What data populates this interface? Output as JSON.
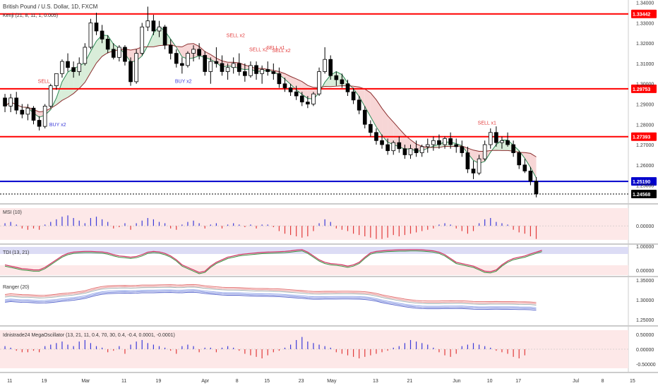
{
  "title": "British Pound / U.S. Dollar, 1D, FXCM",
  "main_subtitle": "Kenji (21, 8, 11, 1, 0.005)",
  "colors": {
    "up": "#ffffff",
    "down": "#000000",
    "red_line": "#ff0000",
    "blue_line": "#0000cc",
    "sell": "#e23b3b",
    "buy": "#3b3bd9"
  },
  "chart_data": [
    {
      "type": "candlestick",
      "title": "British Pound / U.S. Dollar, 1D, FXCM",
      "subtitle": "Kenji (21, 8, 11, 1, 0.005)",
      "ylim": [
        1.2415,
        1.3385
      ],
      "y_ticks": [
        "1.34000",
        "1.33000",
        "1.32000",
        "1.31000",
        "1.30000",
        "1.29000",
        "1.28000",
        "1.27000",
        "1.26000",
        "1.25000"
      ],
      "x_ticks": [
        {
          "label": "11",
          "index": 1
        },
        {
          "label": "19",
          "index": 7
        },
        {
          "label": "Mar",
          "index": 14
        },
        {
          "label": "11",
          "index": 21
        },
        {
          "label": "19",
          "index": 27
        },
        {
          "label": "Apr",
          "index": 35
        },
        {
          "label": "8",
          "index": 41
        },
        {
          "label": "15",
          "index": 46
        },
        {
          "label": "23",
          "index": 52
        },
        {
          "label": "May",
          "index": 57
        },
        {
          "label": "13",
          "index": 65
        },
        {
          "label": "21",
          "index": 71
        },
        {
          "label": "Jun",
          "index": 79
        },
        {
          "label": "10",
          "index": 85
        },
        {
          "label": "17",
          "index": 90
        },
        {
          "label": "Jul",
          "index": 100
        },
        {
          "label": "8",
          "index": 105
        },
        {
          "label": "15",
          "index": 110
        }
      ],
      "levels": [
        {
          "value": "1.33442",
          "color": "#ff0000"
        },
        {
          "value": "1.29753",
          "color": "#ff0000"
        },
        {
          "value": "1.27393",
          "color": "#ff0000"
        },
        {
          "value": "1.25190",
          "color": "#0000cc"
        },
        {
          "value": "1.24568",
          "color": "#000000"
        }
      ],
      "signals": [
        {
          "text": "SELL",
          "type": "sell",
          "index": 7,
          "value": 1.3005
        },
        {
          "text": "BUY x2",
          "type": "buy",
          "index": 9,
          "value": 1.279
        },
        {
          "text": "BUY x2",
          "type": "buy",
          "index": 31,
          "value": 1.3005
        },
        {
          "text": "SELL x2",
          "type": "sell",
          "index": 40,
          "value": 1.323
        },
        {
          "text": "SELL x2",
          "type": "sell",
          "index": 44,
          "value": 1.316
        },
        {
          "text": "SELL x1",
          "type": "sell",
          "index": 47,
          "value": 1.317
        },
        {
          "text": "SELL x2",
          "type": "sell",
          "index": 48,
          "value": 1.3155
        },
        {
          "text": "SELL x1",
          "type": "sell",
          "index": 84,
          "value": 1.28
        }
      ],
      "candles": [
        [
          1.293,
          1.295,
          1.286,
          1.289
        ],
        [
          1.289,
          1.295,
          1.286,
          1.293
        ],
        [
          1.293,
          1.296,
          1.285,
          1.287
        ],
        [
          1.287,
          1.29,
          1.283,
          1.285
        ],
        [
          1.285,
          1.29,
          1.282,
          1.288
        ],
        [
          1.288,
          1.289,
          1.28,
          1.282
        ],
        [
          1.282,
          1.284,
          1.277,
          1.279
        ],
        [
          1.279,
          1.29,
          1.278,
          1.289
        ],
        [
          1.289,
          1.3,
          1.288,
          1.299
        ],
        [
          1.299,
          1.305,
          1.297,
          1.305
        ],
        [
          1.305,
          1.312,
          1.303,
          1.311
        ],
        [
          1.311,
          1.315,
          1.306,
          1.308
        ],
        [
          1.308,
          1.311,
          1.303,
          1.306
        ],
        [
          1.306,
          1.313,
          1.304,
          1.31
        ],
        [
          1.31,
          1.32,
          1.309,
          1.318
        ],
        [
          1.318,
          1.332,
          1.317,
          1.33
        ],
        [
          1.33,
          1.335,
          1.324,
          1.326
        ],
        [
          1.326,
          1.329,
          1.32,
          1.322
        ],
        [
          1.322,
          1.324,
          1.315,
          1.317
        ],
        [
          1.317,
          1.32,
          1.312,
          1.313
        ],
        [
          1.313,
          1.319,
          1.311,
          1.318
        ],
        [
          1.318,
          1.319,
          1.309,
          1.311
        ],
        [
          1.311,
          1.313,
          1.299,
          1.301
        ],
        [
          1.301,
          1.317,
          1.3,
          1.315
        ],
        [
          1.315,
          1.33,
          1.314,
          1.328
        ],
        [
          1.328,
          1.338,
          1.326,
          1.331
        ],
        [
          1.331,
          1.334,
          1.324,
          1.326
        ],
        [
          1.326,
          1.331,
          1.323,
          1.328
        ],
        [
          1.328,
          1.329,
          1.317,
          1.319
        ],
        [
          1.319,
          1.322,
          1.312,
          1.315
        ],
        [
          1.315,
          1.317,
          1.308,
          1.31
        ],
        [
          1.31,
          1.313,
          1.305,
          1.309
        ],
        [
          1.309,
          1.316,
          1.308,
          1.315
        ],
        [
          1.315,
          1.319,
          1.311,
          1.317
        ],
        [
          1.317,
          1.32,
          1.312,
          1.314
        ],
        [
          1.314,
          1.316,
          1.304,
          1.306
        ],
        [
          1.306,
          1.313,
          1.3,
          1.311
        ],
        [
          1.311,
          1.318,
          1.308,
          1.31
        ],
        [
          1.31,
          1.314,
          1.304,
          1.306
        ],
        [
          1.306,
          1.31,
          1.302,
          1.308
        ],
        [
          1.308,
          1.313,
          1.305,
          1.31
        ],
        [
          1.31,
          1.315,
          1.304,
          1.306
        ],
        [
          1.306,
          1.31,
          1.301,
          1.304
        ],
        [
          1.304,
          1.311,
          1.303,
          1.309
        ],
        [
          1.309,
          1.311,
          1.302,
          1.305
        ],
        [
          1.305,
          1.309,
          1.3,
          1.307
        ],
        [
          1.307,
          1.311,
          1.304,
          1.306
        ],
        [
          1.306,
          1.31,
          1.302,
          1.305
        ],
        [
          1.305,
          1.308,
          1.298,
          1.3
        ],
        [
          1.3,
          1.303,
          1.296,
          1.298
        ],
        [
          1.298,
          1.3,
          1.294,
          1.296
        ],
        [
          1.296,
          1.299,
          1.292,
          1.294
        ],
        [
          1.294,
          1.296,
          1.289,
          1.291
        ],
        [
          1.291,
          1.294,
          1.288,
          1.29
        ],
        [
          1.29,
          1.296,
          1.289,
          1.295
        ],
        [
          1.295,
          1.308,
          1.294,
          1.306
        ],
        [
          1.306,
          1.318,
          1.305,
          1.312
        ],
        [
          1.312,
          1.314,
          1.302,
          1.304
        ],
        [
          1.304,
          1.306,
          1.299,
          1.302
        ],
        [
          1.302,
          1.305,
          1.298,
          1.3
        ],
        [
          1.3,
          1.302,
          1.294,
          1.296
        ],
        [
          1.296,
          1.298,
          1.29,
          1.292
        ],
        [
          1.292,
          1.294,
          1.285,
          1.287
        ],
        [
          1.287,
          1.289,
          1.278,
          1.28
        ],
        [
          1.28,
          1.282,
          1.274,
          1.276
        ],
        [
          1.276,
          1.278,
          1.27,
          1.272
        ],
        [
          1.272,
          1.275,
          1.268,
          1.27
        ],
        [
          1.27,
          1.273,
          1.265,
          1.267
        ],
        [
          1.267,
          1.272,
          1.265,
          1.271
        ],
        [
          1.271,
          1.274,
          1.266,
          1.268
        ],
        [
          1.268,
          1.27,
          1.263,
          1.265
        ],
        [
          1.265,
          1.27,
          1.263,
          1.268
        ],
        [
          1.268,
          1.272,
          1.264,
          1.266
        ],
        [
          1.266,
          1.27,
          1.264,
          1.269
        ],
        [
          1.269,
          1.273,
          1.266,
          1.27
        ],
        [
          1.27,
          1.274,
          1.267,
          1.272
        ],
        [
          1.272,
          1.275,
          1.268,
          1.27
        ],
        [
          1.27,
          1.274,
          1.268,
          1.273
        ],
        [
          1.273,
          1.276,
          1.268,
          1.27
        ],
        [
          1.27,
          1.273,
          1.266,
          1.269
        ],
        [
          1.269,
          1.272,
          1.264,
          1.266
        ],
        [
          1.266,
          1.269,
          1.256,
          1.258
        ],
        [
          1.258,
          1.262,
          1.253,
          1.256
        ],
        [
          1.256,
          1.265,
          1.255,
          1.263
        ],
        [
          1.263,
          1.272,
          1.262,
          1.27
        ],
        [
          1.27,
          1.278,
          1.268,
          1.276
        ],
        [
          1.276,
          1.279,
          1.269,
          1.271
        ],
        [
          1.271,
          1.274,
          1.268,
          1.272
        ],
        [
          1.272,
          1.276,
          1.269,
          1.27
        ],
        [
          1.27,
          1.272,
          1.264,
          1.266
        ],
        [
          1.266,
          1.267,
          1.258,
          1.26
        ],
        [
          1.26,
          1.263,
          1.256,
          1.257
        ],
        [
          1.257,
          1.259,
          1.25,
          1.252
        ],
        [
          1.252,
          1.254,
          1.244,
          1.2457
        ]
      ]
    },
    {
      "type": "histogram",
      "name": "MSI (10)",
      "y_ticks": [
        "0.00000"
      ],
      "values": [
        0.2,
        0.3,
        0.1,
        -0.2,
        -0.3,
        -0.2,
        -0.3,
        0.1,
        0.3,
        0.5,
        0.7,
        0.8,
        0.6,
        0.4,
        0.2,
        0.6,
        0.7,
        0.5,
        0.3,
        -0.2,
        -0.1,
        0.2,
        -0.3,
        0.2,
        0.4,
        0.6,
        0.5,
        0.3,
        0.2,
        -0.2,
        -0.3,
        0.1,
        0.3,
        0.4,
        0.2,
        -0.2,
        0.1,
        0.2,
        -0.2,
        0.1,
        0.2,
        0.1,
        -0.1,
        0.1,
        -0.2,
        0.1,
        0.1,
        -0.1,
        -0.4,
        -0.6,
        -0.7,
        -0.8,
        -0.9,
        -0.8,
        -0.4,
        0.2,
        0.5,
        0.3,
        -0.2,
        -0.3,
        -0.4,
        -0.6,
        -0.7,
        -0.8,
        -0.9,
        -1.0,
        -1.0,
        -0.9,
        -0.7,
        -0.8,
        -0.7,
        -0.6,
        -0.5,
        -0.4,
        -0.3,
        -0.2,
        0.1,
        0.2,
        0.1,
        -0.2,
        -0.4,
        -0.6,
        -0.4,
        0.2,
        0.5,
        0.6,
        0.3,
        0.2,
        0.1,
        -0.3,
        -0.5,
        -0.6,
        -0.8,
        -1.0
      ]
    },
    {
      "type": "line",
      "name": "TDI (13, 21)",
      "y_ticks": [
        "1.00000",
        "0.00000"
      ],
      "values": [
        0.35,
        0.3,
        0.25,
        0.2,
        0.18,
        0.15,
        0.15,
        0.25,
        0.4,
        0.55,
        0.7,
        0.8,
        0.85,
        0.87,
        0.88,
        0.88,
        0.87,
        0.86,
        0.82,
        0.75,
        0.7,
        0.68,
        0.65,
        0.68,
        0.75,
        0.85,
        0.88,
        0.86,
        0.8,
        0.7,
        0.55,
        0.35,
        0.25,
        0.15,
        0.05,
        0.1,
        0.3,
        0.45,
        0.55,
        0.65,
        0.7,
        0.75,
        0.78,
        0.8,
        0.82,
        0.84,
        0.85,
        0.86,
        0.87,
        0.88,
        0.9,
        0.93,
        0.95,
        0.85,
        0.7,
        0.55,
        0.45,
        0.4,
        0.38,
        0.35,
        0.3,
        0.35,
        0.45,
        0.65,
        0.82,
        0.88,
        0.9,
        0.92,
        0.93,
        0.94,
        0.94,
        0.95,
        0.95,
        0.94,
        0.92,
        0.9,
        0.85,
        0.75,
        0.6,
        0.45,
        0.4,
        0.35,
        0.3,
        0.2,
        0.1,
        0.08,
        0.15,
        0.35,
        0.5,
        0.6,
        0.65,
        0.7,
        0.78,
        0.85,
        0.92
      ]
    },
    {
      "type": "line",
      "name": "Ranger (20)",
      "y_ticks": [
        "1.35000",
        "1.30000",
        "1.25000"
      ]
    },
    {
      "type": "histogram",
      "name": "Idnistrade24 MegaOscillator (13, 21, 11, 0.4, 70, 30, 0.4, -0.4, 0.0001, -0.0001)",
      "y_ticks": [
        "0.50000",
        "0.00000",
        "-0.50000"
      ],
      "values": [
        0.2,
        0.1,
        -0.1,
        -0.2,
        -0.2,
        -0.1,
        -0.2,
        0.2,
        0.3,
        0.4,
        0.5,
        0.3,
        0.2,
        0.5,
        0.6,
        0.4,
        0.2,
        0.1,
        -0.2,
        -0.1,
        0.2,
        -0.3,
        0.3,
        0.5,
        0.6,
        0.4,
        0.3,
        0.2,
        0.1,
        -0.1,
        -0.3,
        0.2,
        0.3,
        0.2,
        -0.2,
        0.1,
        0.1,
        -0.2,
        0.1,
        0.2,
        0.1,
        -0.1,
        -0.3,
        -0.4,
        -0.5,
        -0.6,
        -0.4,
        -0.2,
        -0.1,
        0.1,
        0.3,
        0.6,
        0.8,
        0.5,
        0.4,
        0.3,
        0.2,
        0.1,
        -0.2,
        -0.3,
        -0.4,
        -0.5,
        -0.6,
        -0.5,
        -0.4,
        -0.3,
        -0.2,
        -0.1,
        0.1,
        0.2,
        0.4,
        0.6,
        0.5,
        0.4,
        0.3,
        0.1,
        -0.2,
        -0.4,
        -0.5,
        -0.3,
        0.2,
        0.3,
        0.4,
        0.3,
        0.2,
        0.1,
        -0.1,
        -0.2,
        -0.3,
        -0.5,
        -0.6,
        -0.4
      ]
    }
  ]
}
